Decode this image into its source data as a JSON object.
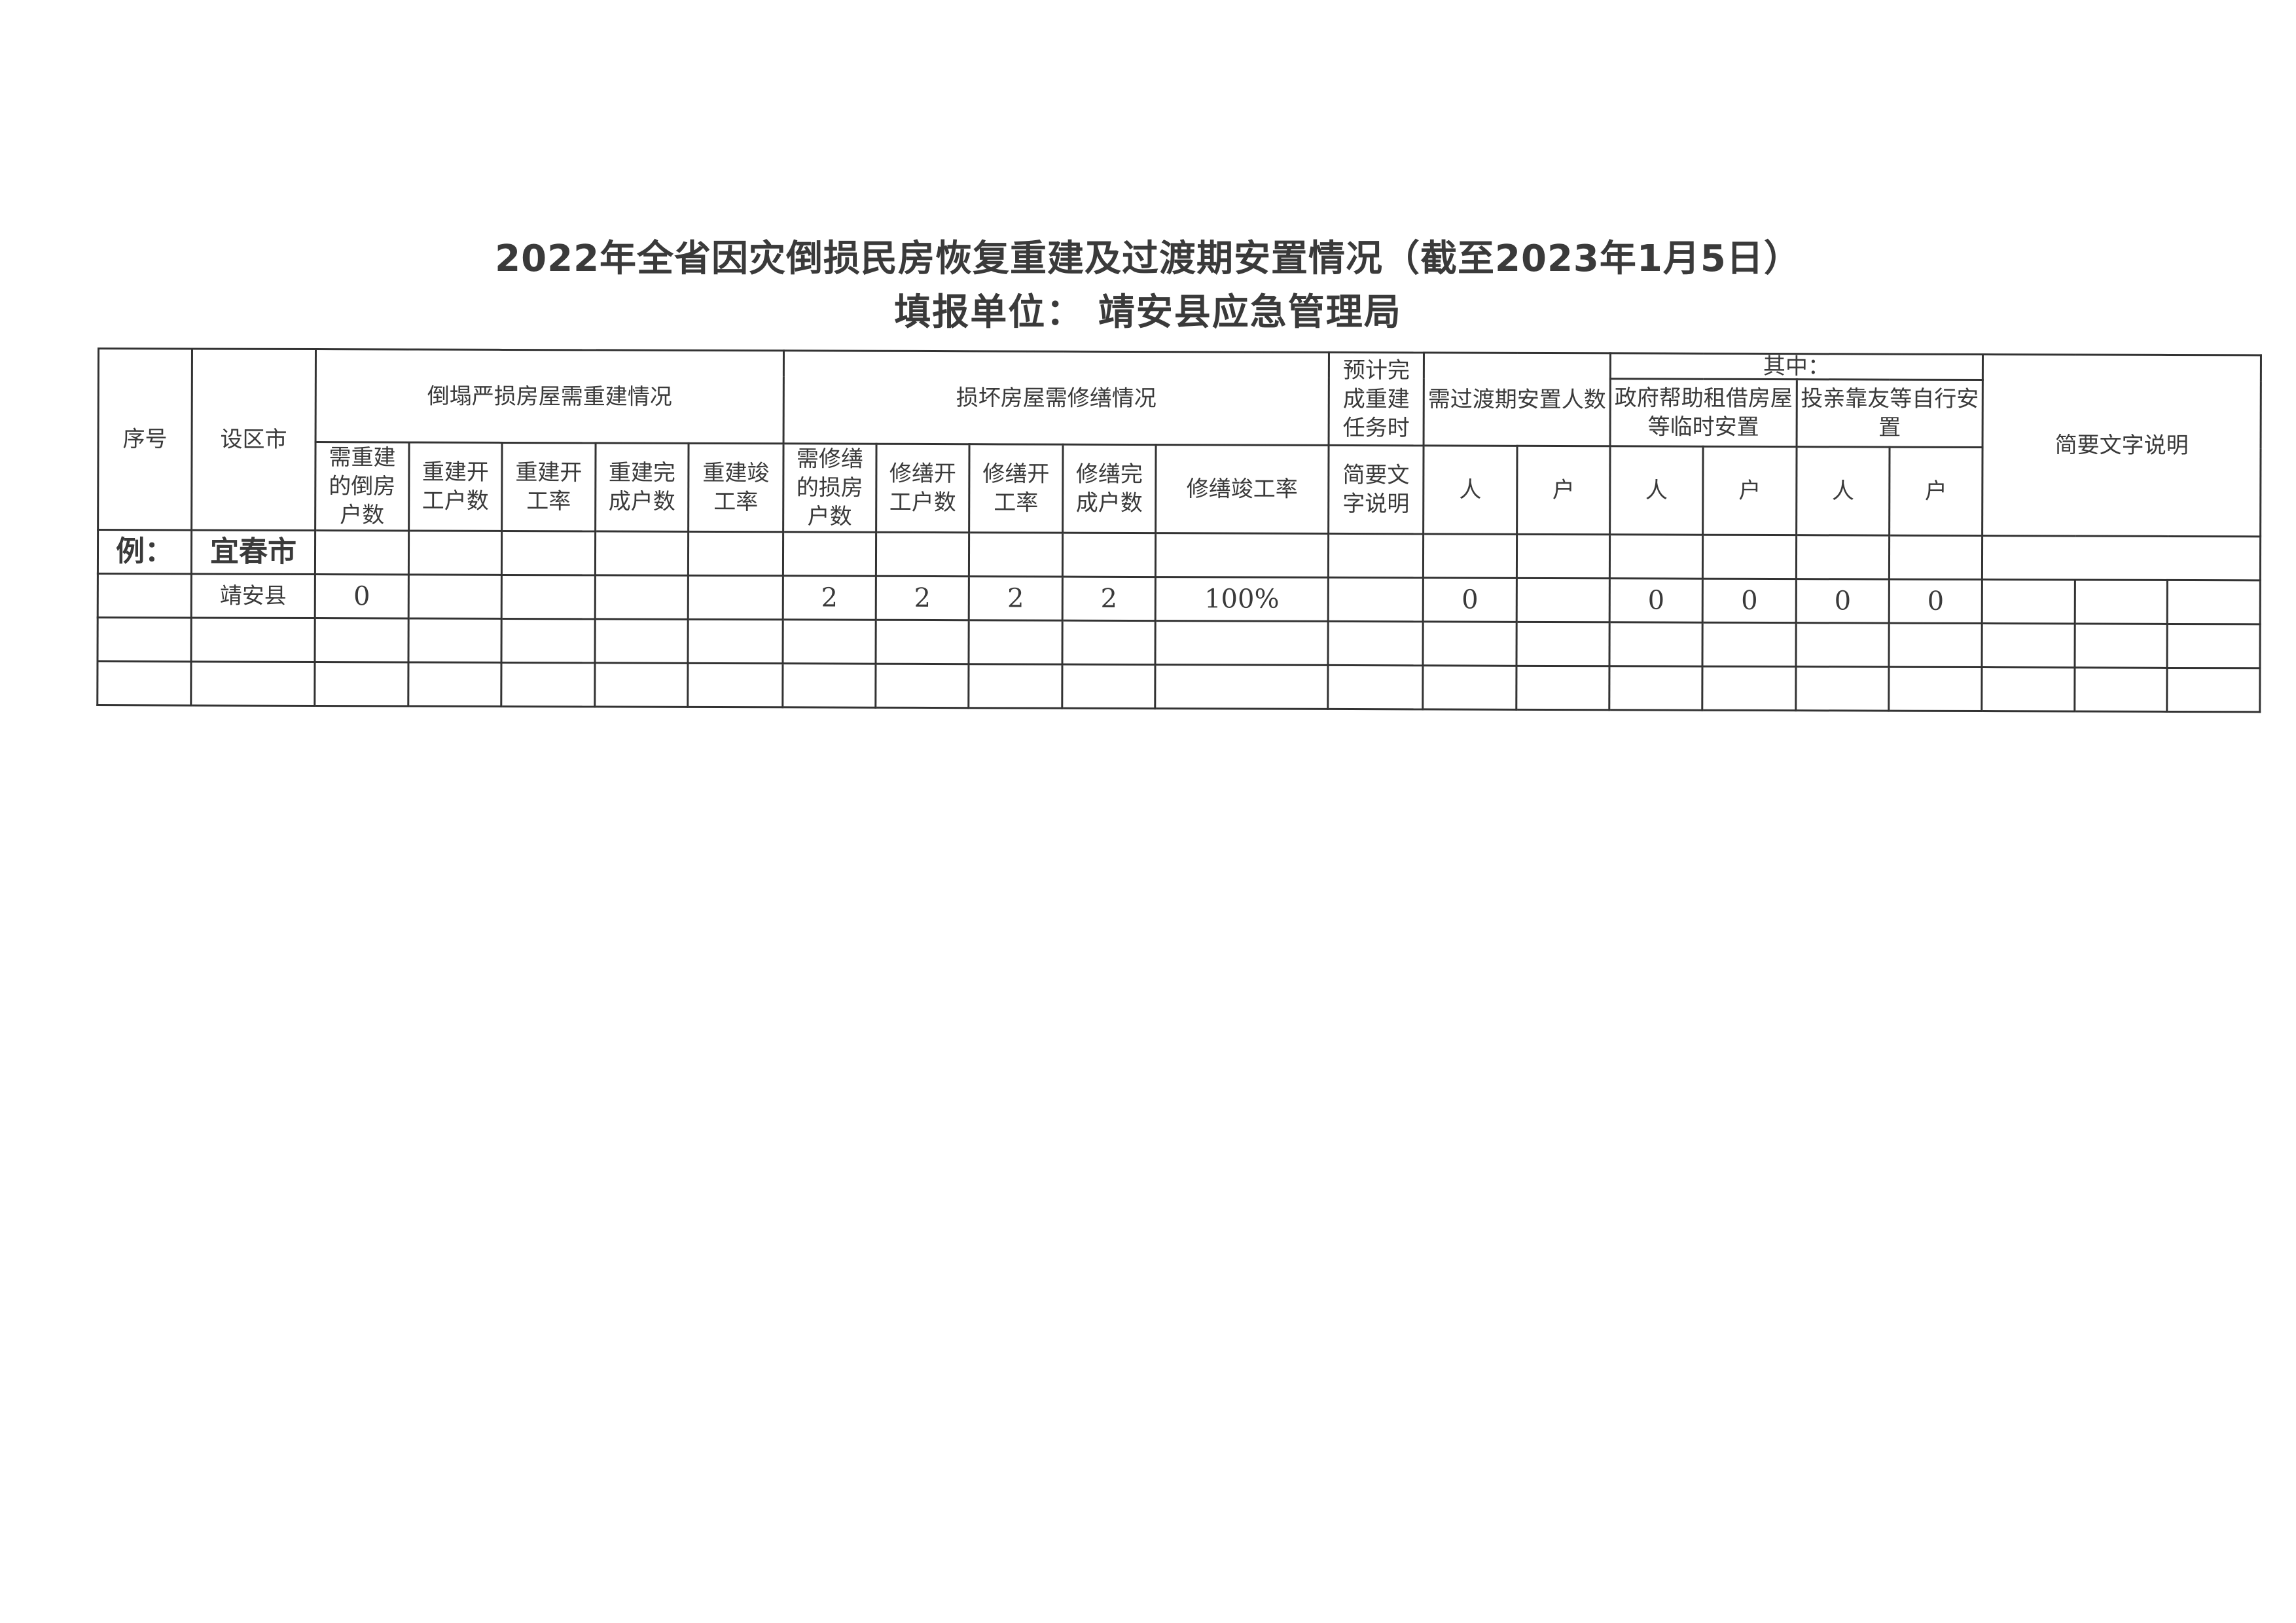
{
  "title": "2022年全省因灾倒损民房恢复重建及过渡期安置情况（截至2023年1月5日）",
  "subtitle": "填报单位：  靖安县应急管理局",
  "header": {
    "seq": "序号",
    "city": "设区市",
    "rebuild_group": "倒塌严损房屋需重建情况",
    "repair_group": "损坏房屋需修缮情况",
    "expected": "预计完成重建任务时",
    "transition": "需过渡期安置人数",
    "among": "其中：",
    "gov": "政府帮助租借房屋等临时安置",
    "self": "投亲靠友等自行安置",
    "notes": "简要文字说明",
    "rebuild_cols": [
      "需重建的倒房户数",
      "重建开工户数",
      "重建开工率",
      "重建完成户数",
      "重建竣工率"
    ],
    "repair_cols": [
      "需修缮的损房户数",
      "修缮开工户数",
      "修缮开工率",
      "修缮完成户数",
      "修缮竣工率"
    ],
    "expected_sub": "简要文字说明",
    "person": "人",
    "household": "户"
  },
  "example_row": {
    "seq": "例：",
    "city": "宜春市"
  },
  "rows": [
    [
      "",
      "靖安县",
      "0",
      "",
      "",
      "",
      "",
      "2",
      "2",
      "2",
      "2",
      "100%",
      "",
      "0",
      "",
      "0",
      "0",
      "0",
      "0",
      "",
      "",
      ""
    ],
    [
      "",
      "",
      "",
      "",
      "",
      "",
      "",
      "",
      "",
      "",
      "",
      "",
      "",
      "",
      "",
      "",
      "",
      "",
      "",
      "",
      "",
      ""
    ],
    [
      "",
      "",
      "",
      "",
      "",
      "",
      "",
      "",
      "",
      "",
      "",
      "",
      "",
      "",
      "",
      "",
      "",
      "",
      "",
      "",
      "",
      ""
    ]
  ]
}
